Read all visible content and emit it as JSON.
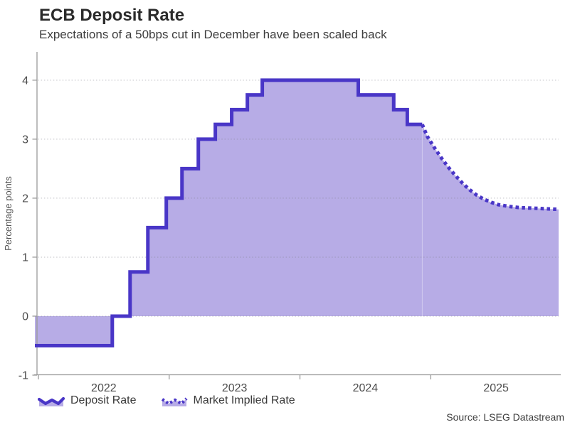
{
  "header": {
    "title": "ECB Deposit Rate",
    "subtitle": "Expectations of a 50bps cut in December have been scaled back"
  },
  "legend": {
    "items": [
      {
        "label": "Deposit Rate",
        "style": "solid"
      },
      {
        "label": "Market Implied Rate",
        "style": "dotted"
      }
    ]
  },
  "footer": {
    "source": "Source: LSEG Datastream"
  },
  "colors": {
    "line": "#4936c7",
    "fill": "#b7ace6",
    "grid": "rgba(125,125,135,0.5)",
    "axis": "#9a9a9a",
    "tick_text": "#4d4d4d",
    "ylabel_text": "#555555"
  },
  "chart_data": {
    "type": "area",
    "title": "ECB Deposit Rate",
    "subtitle": "Expectations of a 50bps cut in December have been scaled back",
    "xlabel": "",
    "ylabel": "Percentage points",
    "source": "Source: LSEG Datastream",
    "x_units": "decimal years",
    "xlim": [
      2021.973,
      2025.978
    ],
    "ylim": [
      -1,
      4.48
    ],
    "yticks": [
      -1,
      0,
      1,
      2,
      3,
      4
    ],
    "ytick_labels": [
      "-1",
      "0",
      "1",
      "2",
      "3",
      "4"
    ],
    "xticks": [
      2022,
      2023,
      2024,
      2025
    ],
    "xtick_labels": [
      "2022",
      "2023",
      "2024",
      "2025"
    ],
    "xtick_label_offset_years": 0.5,
    "grid": "dotted horizontal",
    "legend_position": "bottom-left",
    "baseline": 0,
    "series": [
      {
        "name": "Deposit Rate",
        "type": "step-area",
        "line_style": "solid",
        "points": [
          [
            2021.973,
            -0.5
          ],
          [
            2022.565,
            0.0
          ],
          [
            2022.701,
            0.75
          ],
          [
            2022.837,
            1.5
          ],
          [
            2022.978,
            2.0
          ],
          [
            2023.098,
            2.5
          ],
          [
            2023.223,
            3.0
          ],
          [
            2023.353,
            3.25
          ],
          [
            2023.478,
            3.5
          ],
          [
            2023.598,
            3.75
          ],
          [
            2023.712,
            4.0
          ],
          [
            2024.446,
            3.75
          ],
          [
            2024.717,
            3.5
          ],
          [
            2024.821,
            3.25
          ],
          [
            2024.935,
            3.25
          ]
        ]
      },
      {
        "name": "Market Implied Rate",
        "type": "line-area",
        "line_style": "dotted",
        "points": [
          [
            2024.935,
            3.25
          ],
          [
            2024.973,
            3.05
          ],
          [
            2025.027,
            2.86
          ],
          [
            2025.082,
            2.68
          ],
          [
            2025.136,
            2.52
          ],
          [
            2025.19,
            2.38
          ],
          [
            2025.245,
            2.25
          ],
          [
            2025.299,
            2.14
          ],
          [
            2025.353,
            2.05
          ],
          [
            2025.408,
            1.98
          ],
          [
            2025.462,
            1.93
          ],
          [
            2025.516,
            1.89
          ],
          [
            2025.598,
            1.86
          ],
          [
            2025.679,
            1.84
          ],
          [
            2025.788,
            1.83
          ],
          [
            2025.88,
            1.82
          ],
          [
            2025.978,
            1.81
          ]
        ]
      }
    ]
  }
}
